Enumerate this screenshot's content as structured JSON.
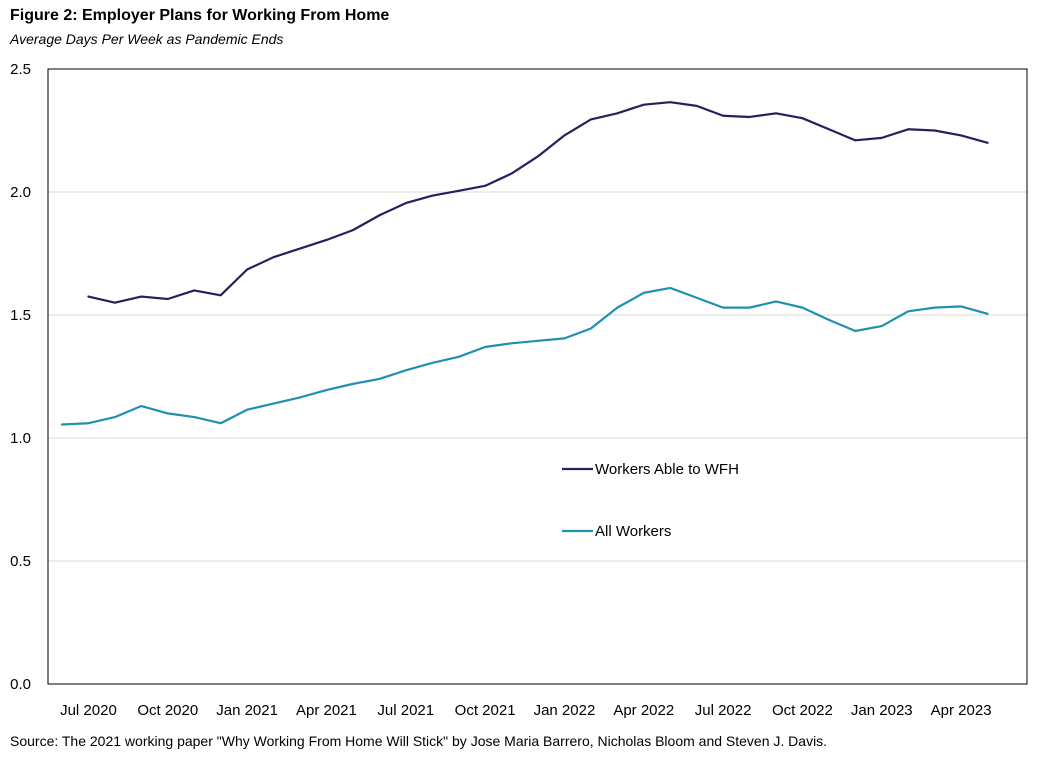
{
  "chart_data": {
    "type": "line",
    "title": "Figure 2: Employer Plans for Working From Home",
    "subtitle": "Average Days Per Week as Pandemic Ends",
    "source": "Source: The 2021  working paper \"Why Working From Home Will Stick\" by Jose Maria Barrero, Nicholas Bloom and Steven J. Davis.",
    "xlabel": "",
    "ylabel": "",
    "ylim": [
      0,
      2.5
    ],
    "yticks": [
      "0.0",
      "0.5",
      "1.0",
      "1.5",
      "2.0",
      "2.5"
    ],
    "grid": true,
    "x": [
      "Jun 2020",
      "Jul 2020",
      "Aug 2020",
      "Sep 2020",
      "Oct 2020",
      "Nov 2020",
      "Dec 2020",
      "Jan 2021",
      "Feb 2021",
      "Mar 2021",
      "Apr 2021",
      "May 2021",
      "Jun 2021",
      "Jul 2021",
      "Aug 2021",
      "Sep 2021",
      "Oct 2021",
      "Nov 2021",
      "Dec 2021",
      "Jan 2022",
      "Feb 2022",
      "Mar 2022",
      "Apr 2022",
      "May 2022",
      "Jun 2022",
      "Jul 2022",
      "Aug 2022",
      "Sep 2022",
      "Oct 2022",
      "Nov 2022",
      "Dec 2022",
      "Jan 2023",
      "Feb 2023",
      "Mar 2023",
      "Apr 2023",
      "May 2023",
      "Jun 2023"
    ],
    "xtick_labels": [
      {
        "label": "Jul 2020",
        "index": 1
      },
      {
        "label": "Oct 2020",
        "index": 4
      },
      {
        "label": "Jan 2021",
        "index": 7
      },
      {
        "label": "Apr 2021",
        "index": 10
      },
      {
        "label": "Jul 2021",
        "index": 13
      },
      {
        "label": "Oct 2021",
        "index": 16
      },
      {
        "label": "Jan 2022",
        "index": 19
      },
      {
        "label": "Apr 2022",
        "index": 22
      },
      {
        "label": "Jul 2022",
        "index": 25
      },
      {
        "label": "Oct 2022",
        "index": 28
      },
      {
        "label": "Jan 2023",
        "index": 31
      },
      {
        "label": "Apr 2023",
        "index": 34
      }
    ],
    "series": [
      {
        "name": "Workers Able to WFH",
        "color": "#2b1d5e",
        "values": [
          null,
          1.575,
          1.55,
          1.575,
          1.565,
          1.6,
          1.58,
          1.685,
          1.735,
          1.77,
          1.805,
          1.845,
          1.905,
          1.955,
          1.985,
          2.005,
          2.025,
          2.075,
          2.145,
          2.23,
          2.295,
          2.32,
          2.355,
          2.365,
          2.35,
          2.31,
          2.305,
          2.32,
          2.3,
          2.255,
          2.21,
          2.22,
          2.255,
          2.25,
          2.23,
          2.2,
          null
        ]
      },
      {
        "name": "All Workers",
        "color": "#2090b0",
        "values": [
          1.055,
          1.06,
          1.085,
          1.13,
          1.1,
          1.085,
          1.06,
          1.115,
          1.14,
          1.165,
          1.195,
          1.22,
          1.24,
          1.275,
          1.305,
          1.33,
          1.37,
          1.385,
          1.395,
          1.405,
          1.445,
          1.53,
          1.59,
          1.61,
          1.57,
          1.53,
          1.53,
          1.555,
          1.53,
          1.48,
          1.435,
          1.455,
          1.515,
          1.53,
          1.535,
          1.505,
          null
        ]
      }
    ]
  }
}
